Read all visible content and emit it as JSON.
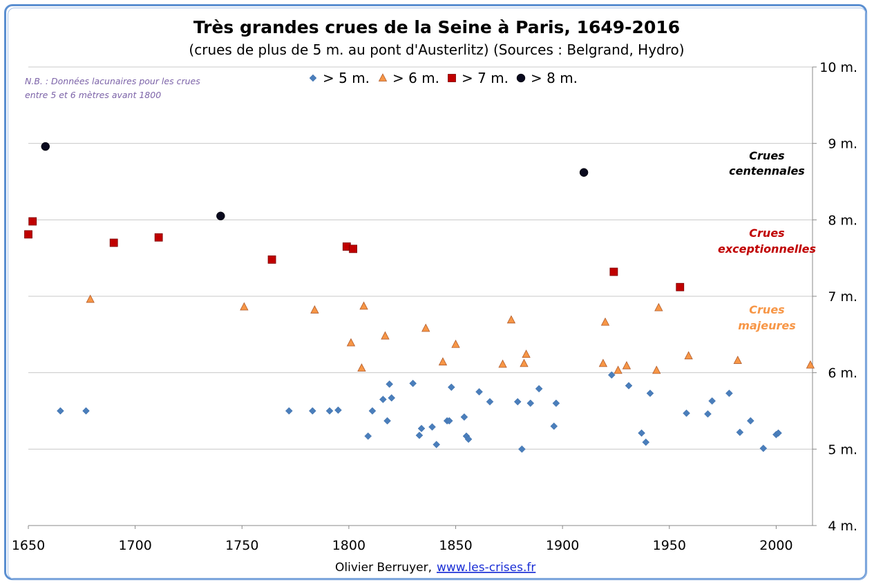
{
  "chart_data": {
    "type": "scatter",
    "title": "Très grandes crues de la Seine à Paris, 1649-2016",
    "subtitle": "(crues de plus de 5 m. au pont d'Austerlitz) (Sources : Belgrand, Hydro)",
    "note_lines": [
      "N.B. : Données lacunaires pour les crues",
      "entre 5 et 6 mètres avant 1800"
    ],
    "xlim": [
      1650,
      2017
    ],
    "ylim": [
      4,
      10
    ],
    "x_ticks": [
      {
        "value": 1650,
        "label": "1650"
      },
      {
        "value": 1700,
        "label": "1700"
      },
      {
        "value": 1750,
        "label": "1750"
      },
      {
        "value": 1800,
        "label": "1800"
      },
      {
        "value": 1850,
        "label": "1850"
      },
      {
        "value": 1900,
        "label": "1900"
      },
      {
        "value": 1950,
        "label": "1950"
      },
      {
        "value": 2000,
        "label": "2000"
      }
    ],
    "y_ticks": [
      {
        "value": 4,
        "label": "4 m."
      },
      {
        "value": 5,
        "label": "5 m."
      },
      {
        "value": 6,
        "label": "6 m."
      },
      {
        "value": 7,
        "label": "7 m."
      },
      {
        "value": 8,
        "label": "8 m."
      },
      {
        "value": 9,
        "label": "9 m."
      },
      {
        "value": 10,
        "label": "10 m."
      }
    ],
    "y_axis_side": "right",
    "grid": "horizontal",
    "legend_position": "top-center",
    "series": [
      {
        "name": "> 5 m.",
        "marker": "diamond",
        "color": "#4a7ebb",
        "points": [
          [
            1665,
            5.5
          ],
          [
            1677,
            5.5
          ],
          [
            1772,
            5.5
          ],
          [
            1783,
            5.5
          ],
          [
            1791,
            5.5
          ],
          [
            1795,
            5.51
          ],
          [
            1809,
            5.17
          ],
          [
            1811,
            5.5
          ],
          [
            1816,
            5.65
          ],
          [
            1818,
            5.37
          ],
          [
            1819,
            5.85
          ],
          [
            1820,
            5.67
          ],
          [
            1830,
            5.86
          ],
          [
            1833,
            5.18
          ],
          [
            1834,
            5.27
          ],
          [
            1839,
            5.29
          ],
          [
            1841,
            5.06
          ],
          [
            1846,
            5.37
          ],
          [
            1847,
            5.37
          ],
          [
            1848,
            5.81
          ],
          [
            1854,
            5.42
          ],
          [
            1855,
            5.17
          ],
          [
            1856,
            5.13
          ],
          [
            1861,
            5.75
          ],
          [
            1866,
            5.62
          ],
          [
            1879,
            5.62
          ],
          [
            1881,
            5.0
          ],
          [
            1885,
            5.6
          ],
          [
            1889,
            5.79
          ],
          [
            1896,
            5.3
          ],
          [
            1897,
            5.6
          ],
          [
            1923,
            5.97
          ],
          [
            1931,
            5.83
          ],
          [
            1937,
            5.21
          ],
          [
            1939,
            5.09
          ],
          [
            1941,
            5.73
          ],
          [
            1958,
            5.47
          ],
          [
            1968,
            5.46
          ],
          [
            1970,
            5.63
          ],
          [
            1978,
            5.73
          ],
          [
            1983,
            5.22
          ],
          [
            1988,
            5.37
          ],
          [
            1994,
            5.01
          ],
          [
            2000,
            5.19
          ],
          [
            2001,
            5.21
          ]
        ]
      },
      {
        "name": "> 6 m.",
        "marker": "triangle",
        "color": "#f79646",
        "points": [
          [
            1679,
            6.96
          ],
          [
            1751,
            6.86
          ],
          [
            1784,
            6.82
          ],
          [
            1801,
            6.39
          ],
          [
            1806,
            6.06
          ],
          [
            1807,
            6.87
          ],
          [
            1817,
            6.48
          ],
          [
            1836,
            6.58
          ],
          [
            1844,
            6.14
          ],
          [
            1850,
            6.37
          ],
          [
            1872,
            6.11
          ],
          [
            1876,
            6.69
          ],
          [
            1882,
            6.12
          ],
          [
            1883,
            6.24
          ],
          [
            1919,
            6.12
          ],
          [
            1920,
            6.66
          ],
          [
            1926,
            6.03
          ],
          [
            1930,
            6.09
          ],
          [
            1944,
            6.03
          ],
          [
            1945,
            6.85
          ],
          [
            1959,
            6.22
          ],
          [
            1982,
            6.16
          ],
          [
            2016,
            6.1
          ]
        ]
      },
      {
        "name": "> 7 m.",
        "marker": "square",
        "color": "#c00000",
        "points": [
          [
            1650,
            7.81
          ],
          [
            1652,
            7.98
          ],
          [
            1690,
            7.7
          ],
          [
            1711,
            7.77
          ],
          [
            1764,
            7.48
          ],
          [
            1799,
            7.65
          ],
          [
            1802,
            7.62
          ],
          [
            1924,
            7.32
          ],
          [
            1955,
            7.12
          ]
        ]
      },
      {
        "name": "> 8 m.",
        "marker": "circle",
        "color": "#0a0a1e",
        "points": [
          [
            1658,
            8.96
          ],
          [
            1740,
            8.05
          ],
          [
            1910,
            8.62
          ]
        ]
      }
    ],
    "bands": [
      {
        "lines": [
          "Crues",
          "centennales"
        ],
        "color": "#000000"
      },
      {
        "lines": [
          "Crues",
          "exceptionnelles"
        ],
        "color": "#c00000"
      },
      {
        "lines": [
          "Crues",
          "majeures"
        ],
        "color": "#f79646"
      }
    ],
    "credit": {
      "author": "Olivier Berruyer,",
      "link": "www.les-crises.fr"
    }
  }
}
